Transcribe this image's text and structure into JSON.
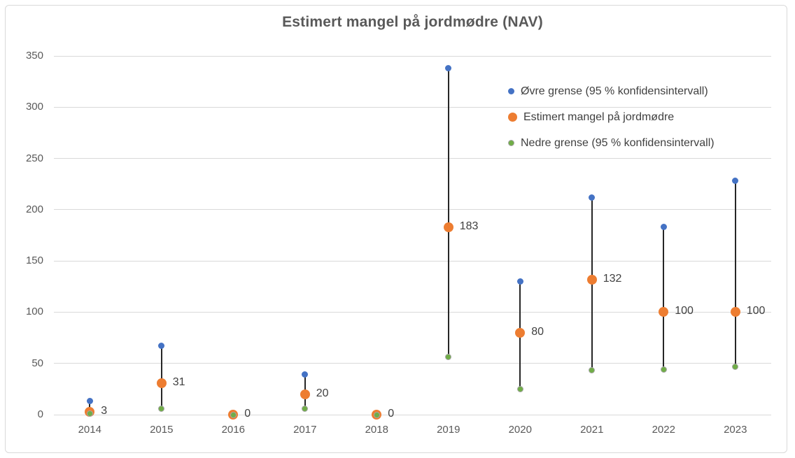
{
  "chart_data": {
    "type": "scatter",
    "title": "Estimert mangel på jordmødre (NAV)",
    "categories": [
      "2014",
      "2015",
      "2016",
      "2017",
      "2018",
      "2019",
      "2020",
      "2021",
      "2022",
      "2023"
    ],
    "series": [
      {
        "name": "Øvre grense (95 % konfidensintervall)",
        "color": "#4472C4",
        "values": [
          13,
          67,
          0,
          39,
          0,
          338,
          130,
          212,
          183,
          228
        ]
      },
      {
        "name": "Estimert mangel på jordmødre",
        "color": "#ED7D31",
        "values": [
          3,
          31,
          0,
          20,
          0,
          183,
          80,
          132,
          100,
          100
        ]
      },
      {
        "name": "Nedre grense (95 % konfidensintervall)",
        "color": "#70AD47",
        "values": [
          1,
          6,
          0,
          6,
          0,
          56,
          25,
          43,
          44,
          47
        ]
      }
    ],
    "data_labels": [
      "3",
      "31",
      "0",
      "20",
      "0",
      "183",
      "80",
      "132",
      "100",
      "100"
    ],
    "data_label_series": "Estimert mangel på jordmødre",
    "ylim": [
      0,
      350
    ],
    "yticks": [
      0,
      50,
      100,
      150,
      200,
      250,
      300,
      350
    ],
    "grid": true,
    "high_low_lines": true,
    "legend_position": "top-right",
    "colors": {
      "grid": "#d9d9d9",
      "axis_text": "#595959",
      "data_label_text": "#404040",
      "high_low_line": "#262626",
      "lower_marker_border": "#a6a6a6",
      "frame_border": "#d9d9d9",
      "title_text": "#595959"
    }
  }
}
